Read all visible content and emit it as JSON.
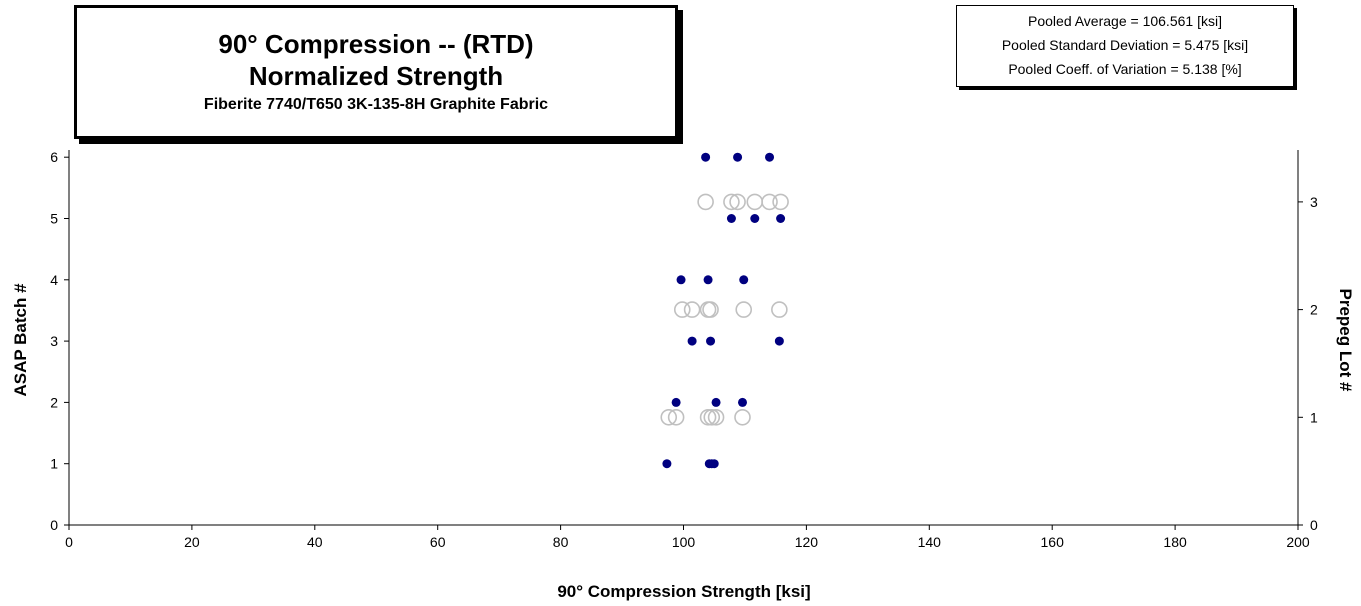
{
  "title_box": {
    "line1": "90° Compression -- (RTD)",
    "line2": "Normalized Strength",
    "line3": "Fiberite 7740/T650 3K-135-8H Graphite Fabric"
  },
  "stats_box": {
    "pooled_average": "Pooled Average = 106.561 [ksi]",
    "pooled_std": "Pooled Standard Deviation = 5.475  [ksi]",
    "pooled_cov": "Pooled Coeff. of  Variation = 5.138 [%]"
  },
  "chart_data": {
    "type": "scatter",
    "xlabel": "90° Compression Strength  [ksi]",
    "ylabel": "ASAP Batch #",
    "y2label": "Prepeg Lot #",
    "xlim": [
      0,
      200
    ],
    "xticks": [
      0,
      20,
      40,
      60,
      80,
      100,
      120,
      140,
      160,
      180,
      200
    ],
    "ylim": [
      0,
      6
    ],
    "yticks": [
      0,
      1,
      2,
      3,
      4,
      5,
      6
    ],
    "y2lim": [
      0,
      3.45
    ],
    "y2ticks": [
      0,
      1,
      2,
      3
    ],
    "grid": false,
    "series": [
      {
        "axis": "left",
        "marker": "filled-circle",
        "color": "#000080",
        "points": [
          [
            97.3,
            1
          ],
          [
            104.2,
            1
          ],
          [
            104.6,
            1
          ],
          [
            105.0,
            1
          ],
          [
            98.8,
            2
          ],
          [
            105.3,
            2
          ],
          [
            109.6,
            2
          ],
          [
            101.4,
            3
          ],
          [
            104.4,
            3
          ],
          [
            115.6,
            3
          ],
          [
            99.6,
            4
          ],
          [
            104.0,
            4
          ],
          [
            109.8,
            4
          ],
          [
            107.8,
            5
          ],
          [
            111.6,
            5
          ],
          [
            115.8,
            5
          ],
          [
            103.6,
            6
          ],
          [
            108.8,
            6
          ],
          [
            114.0,
            6
          ]
        ]
      },
      {
        "axis": "right",
        "marker": "open-circle",
        "color": "#c0c0c0",
        "points": [
          [
            97.6,
            1
          ],
          [
            98.8,
            1
          ],
          [
            104.0,
            1
          ],
          [
            104.6,
            1
          ],
          [
            105.3,
            1
          ],
          [
            109.6,
            1
          ],
          [
            99.8,
            2
          ],
          [
            101.4,
            2
          ],
          [
            104.0,
            2
          ],
          [
            104.4,
            2
          ],
          [
            109.8,
            2
          ],
          [
            115.6,
            2
          ],
          [
            103.6,
            3
          ],
          [
            107.8,
            3
          ],
          [
            108.8,
            3
          ],
          [
            111.6,
            3
          ],
          [
            114.0,
            3
          ],
          [
            115.8,
            3
          ]
        ]
      }
    ]
  }
}
